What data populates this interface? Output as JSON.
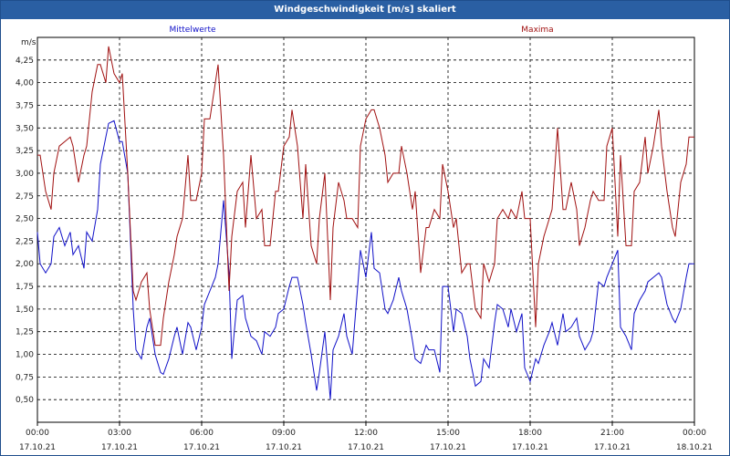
{
  "window": {
    "title": "Windgeschwindigkeit [m/s] skaliert"
  },
  "colors": {
    "titlebar_bg": "#2a5fa3",
    "mean": "#1010c8",
    "max": "#a01010",
    "grid": "#000000"
  },
  "chart_data": {
    "type": "line",
    "title": "Windgeschwindigkeit [m/s] skaliert",
    "ylabel": "m/s",
    "ylim": [
      0.25,
      4.5
    ],
    "xlim_hours": [
      0,
      24
    ],
    "y_ticks": [
      4.25,
      4.0,
      3.75,
      3.5,
      3.25,
      3.0,
      2.75,
      2.5,
      2.25,
      2.0,
      1.75,
      1.5,
      1.25,
      1.0,
      0.75,
      0.5
    ],
    "y_tick_labels": [
      "4,25",
      "4,00",
      "3,75",
      "3,50",
      "3,25",
      "3,00",
      "2,75",
      "2,50",
      "2,25",
      "2,00",
      "1,75",
      "1,50",
      "1,25",
      "1,00",
      "0,75",
      "0,50"
    ],
    "x_ticks": [
      {
        "hour": 0,
        "time": "00:00",
        "date": "17.10.21"
      },
      {
        "hour": 3,
        "time": "03:00",
        "date": "17.10.21"
      },
      {
        "hour": 6,
        "time": "06:00",
        "date": "17.10.21"
      },
      {
        "hour": 9,
        "time": "09:00",
        "date": "17.10.21"
      },
      {
        "hour": 12,
        "time": "12:00",
        "date": "17.10.21"
      },
      {
        "hour": 15,
        "time": "15:00",
        "date": "17.10.21"
      },
      {
        "hour": 18,
        "time": "18:00",
        "date": "17.10.21"
      },
      {
        "hour": 21,
        "time": "21:00",
        "date": "17.10.21"
      },
      {
        "hour": 24,
        "time": "00:00",
        "date": "18.10.21"
      }
    ],
    "grid": true,
    "legend_position": "top",
    "series": [
      {
        "name": "Mittelwerte",
        "color": "#1010c8",
        "x": [
          0.0,
          0.1,
          0.3,
          0.5,
          0.6,
          0.8,
          1.0,
          1.2,
          1.3,
          1.5,
          1.7,
          1.8,
          2.0,
          2.2,
          2.3,
          2.5,
          2.6,
          2.8,
          3.0,
          3.1,
          3.3,
          3.5,
          3.6,
          3.8,
          4.0,
          4.1,
          4.3,
          4.5,
          4.6,
          4.8,
          5.0,
          5.1,
          5.3,
          5.5,
          5.6,
          5.8,
          6.0,
          6.1,
          6.3,
          6.5,
          6.6,
          6.8,
          7.0,
          7.1,
          7.3,
          7.5,
          7.6,
          7.8,
          8.0,
          8.2,
          8.3,
          8.5,
          8.7,
          8.8,
          9.0,
          9.2,
          9.3,
          9.5,
          9.7,
          9.8,
          10.0,
          10.2,
          10.3,
          10.5,
          10.7,
          10.8,
          11.0,
          11.2,
          11.3,
          11.5,
          11.7,
          11.8,
          12.0,
          12.2,
          12.3,
          12.5,
          12.7,
          12.8,
          13.0,
          13.2,
          13.3,
          13.5,
          13.7,
          13.8,
          14.0,
          14.2,
          14.3,
          14.5,
          14.7,
          14.8,
          15.0,
          15.2,
          15.3,
          15.5,
          15.7,
          15.8,
          16.0,
          16.2,
          16.3,
          16.5,
          16.7,
          16.8,
          17.0,
          17.2,
          17.3,
          17.5,
          17.7,
          17.8,
          18.0,
          18.2,
          18.3,
          18.5,
          18.7,
          18.8,
          19.0,
          19.2,
          19.3,
          19.5,
          19.7,
          19.8,
          20.0,
          20.2,
          20.3,
          20.5,
          20.7,
          20.8,
          21.0,
          21.2,
          21.3,
          21.5,
          21.7,
          21.8,
          22.0,
          22.2,
          22.3,
          22.5,
          22.7,
          22.8,
          23.0,
          23.2,
          23.3,
          23.5,
          23.7,
          23.8,
          24.0
        ],
        "values": [
          2.35,
          2.0,
          1.9,
          2.0,
          2.3,
          2.4,
          2.2,
          2.35,
          2.1,
          2.2,
          1.95,
          2.35,
          2.25,
          2.6,
          3.1,
          3.4,
          3.55,
          3.58,
          3.35,
          3.35,
          3.0,
          1.5,
          1.05,
          0.95,
          1.3,
          1.4,
          1.0,
          0.8,
          0.78,
          0.95,
          1.2,
          1.3,
          1.0,
          1.35,
          1.3,
          1.05,
          1.3,
          1.55,
          1.7,
          1.85,
          2.0,
          2.7,
          1.9,
          0.95,
          1.6,
          1.65,
          1.4,
          1.2,
          1.15,
          1.0,
          1.25,
          1.2,
          1.3,
          1.45,
          1.5,
          1.75,
          1.85,
          1.85,
          1.55,
          1.35,
          1.0,
          0.6,
          0.8,
          1.25,
          0.5,
          1.05,
          1.2,
          1.45,
          1.2,
          1.0,
          1.75,
          2.15,
          1.85,
          2.35,
          1.95,
          1.9,
          1.5,
          1.45,
          1.6,
          1.85,
          1.7,
          1.5,
          1.15,
          0.95,
          0.9,
          1.1,
          1.05,
          1.05,
          0.8,
          1.75,
          1.75,
          1.25,
          1.5,
          1.45,
          1.2,
          0.95,
          0.65,
          0.7,
          0.95,
          0.85,
          1.35,
          1.55,
          1.5,
          1.3,
          1.5,
          1.25,
          1.45,
          0.85,
          0.7,
          0.95,
          0.9,
          1.1,
          1.25,
          1.35,
          1.1,
          1.45,
          1.25,
          1.3,
          1.4,
          1.2,
          1.05,
          1.15,
          1.25,
          1.8,
          1.75,
          1.85,
          2.0,
          2.15,
          1.3,
          1.2,
          1.05,
          1.45,
          1.6,
          1.7,
          1.8,
          1.85,
          1.9,
          1.85,
          1.55,
          1.4,
          1.35,
          1.5,
          1.85,
          2.0,
          2.0
        ]
      },
      {
        "name": "Maxima",
        "color": "#a01010",
        "x": [
          0.0,
          0.1,
          0.3,
          0.5,
          0.6,
          0.8,
          1.0,
          1.2,
          1.3,
          1.5,
          1.7,
          1.8,
          2.0,
          2.2,
          2.3,
          2.5,
          2.6,
          2.8,
          3.0,
          3.1,
          3.3,
          3.5,
          3.6,
          3.8,
          4.0,
          4.1,
          4.3,
          4.5,
          4.6,
          4.8,
          5.0,
          5.1,
          5.3,
          5.5,
          5.6,
          5.8,
          6.0,
          6.1,
          6.3,
          6.5,
          6.6,
          6.8,
          7.0,
          7.1,
          7.3,
          7.5,
          7.6,
          7.8,
          8.0,
          8.2,
          8.3,
          8.5,
          8.7,
          8.8,
          9.0,
          9.2,
          9.3,
          9.5,
          9.7,
          9.8,
          10.0,
          10.2,
          10.3,
          10.5,
          10.7,
          10.8,
          11.0,
          11.2,
          11.3,
          11.5,
          11.7,
          11.8,
          12.0,
          12.2,
          12.3,
          12.5,
          12.7,
          12.8,
          13.0,
          13.2,
          13.3,
          13.5,
          13.7,
          13.8,
          14.0,
          14.2,
          14.3,
          14.5,
          14.7,
          14.8,
          15.0,
          15.2,
          15.3,
          15.5,
          15.7,
          15.8,
          16.0,
          16.2,
          16.3,
          16.5,
          16.7,
          16.8,
          17.0,
          17.2,
          17.3,
          17.5,
          17.7,
          17.8,
          18.0,
          18.2,
          18.3,
          18.5,
          18.7,
          18.8,
          19.0,
          19.2,
          19.3,
          19.5,
          19.7,
          19.8,
          20.0,
          20.2,
          20.3,
          20.5,
          20.7,
          20.8,
          21.0,
          21.2,
          21.3,
          21.5,
          21.7,
          21.8,
          22.0,
          22.2,
          22.3,
          22.5,
          22.7,
          22.8,
          23.0,
          23.2,
          23.3,
          23.5,
          23.7,
          23.8,
          24.0
        ],
        "values": [
          3.2,
          3.2,
          2.8,
          2.6,
          3.0,
          3.3,
          3.35,
          3.4,
          3.3,
          2.9,
          3.2,
          3.3,
          3.9,
          4.2,
          4.2,
          4.0,
          4.4,
          4.1,
          4.0,
          4.1,
          3.0,
          1.7,
          1.6,
          1.8,
          1.9,
          1.5,
          1.1,
          1.1,
          1.4,
          1.8,
          2.1,
          2.3,
          2.5,
          3.2,
          2.7,
          2.7,
          3.0,
          3.6,
          3.6,
          4.0,
          4.2,
          3.2,
          1.7,
          2.3,
          2.8,
          2.9,
          2.4,
          3.2,
          2.5,
          2.6,
          2.2,
          2.2,
          2.8,
          2.8,
          3.3,
          3.4,
          3.7,
          3.3,
          2.5,
          3.1,
          2.2,
          2.0,
          2.5,
          3.0,
          1.6,
          2.4,
          2.9,
          2.7,
          2.5,
          2.5,
          2.4,
          3.3,
          3.6,
          3.7,
          3.7,
          3.5,
          3.2,
          2.9,
          3.0,
          3.0,
          3.3,
          3.0,
          2.6,
          2.8,
          1.9,
          2.4,
          2.4,
          2.6,
          2.5,
          3.1,
          2.8,
          2.4,
          2.5,
          1.9,
          2.0,
          2.0,
          1.5,
          1.4,
          2.0,
          1.8,
          2.0,
          2.5,
          2.6,
          2.5,
          2.6,
          2.5,
          2.8,
          2.5,
          2.5,
          1.3,
          2.0,
          2.3,
          2.5,
          2.6,
          3.5,
          2.6,
          2.6,
          2.9,
          2.6,
          2.2,
          2.4,
          2.7,
          2.8,
          2.7,
          2.7,
          3.3,
          3.5,
          2.3,
          3.2,
          2.2,
          2.2,
          2.8,
          2.9,
          3.4,
          3.0,
          3.3,
          3.7,
          3.3,
          2.8,
          2.4,
          2.3,
          2.9,
          3.1,
          3.4,
          3.4
        ]
      }
    ]
  }
}
